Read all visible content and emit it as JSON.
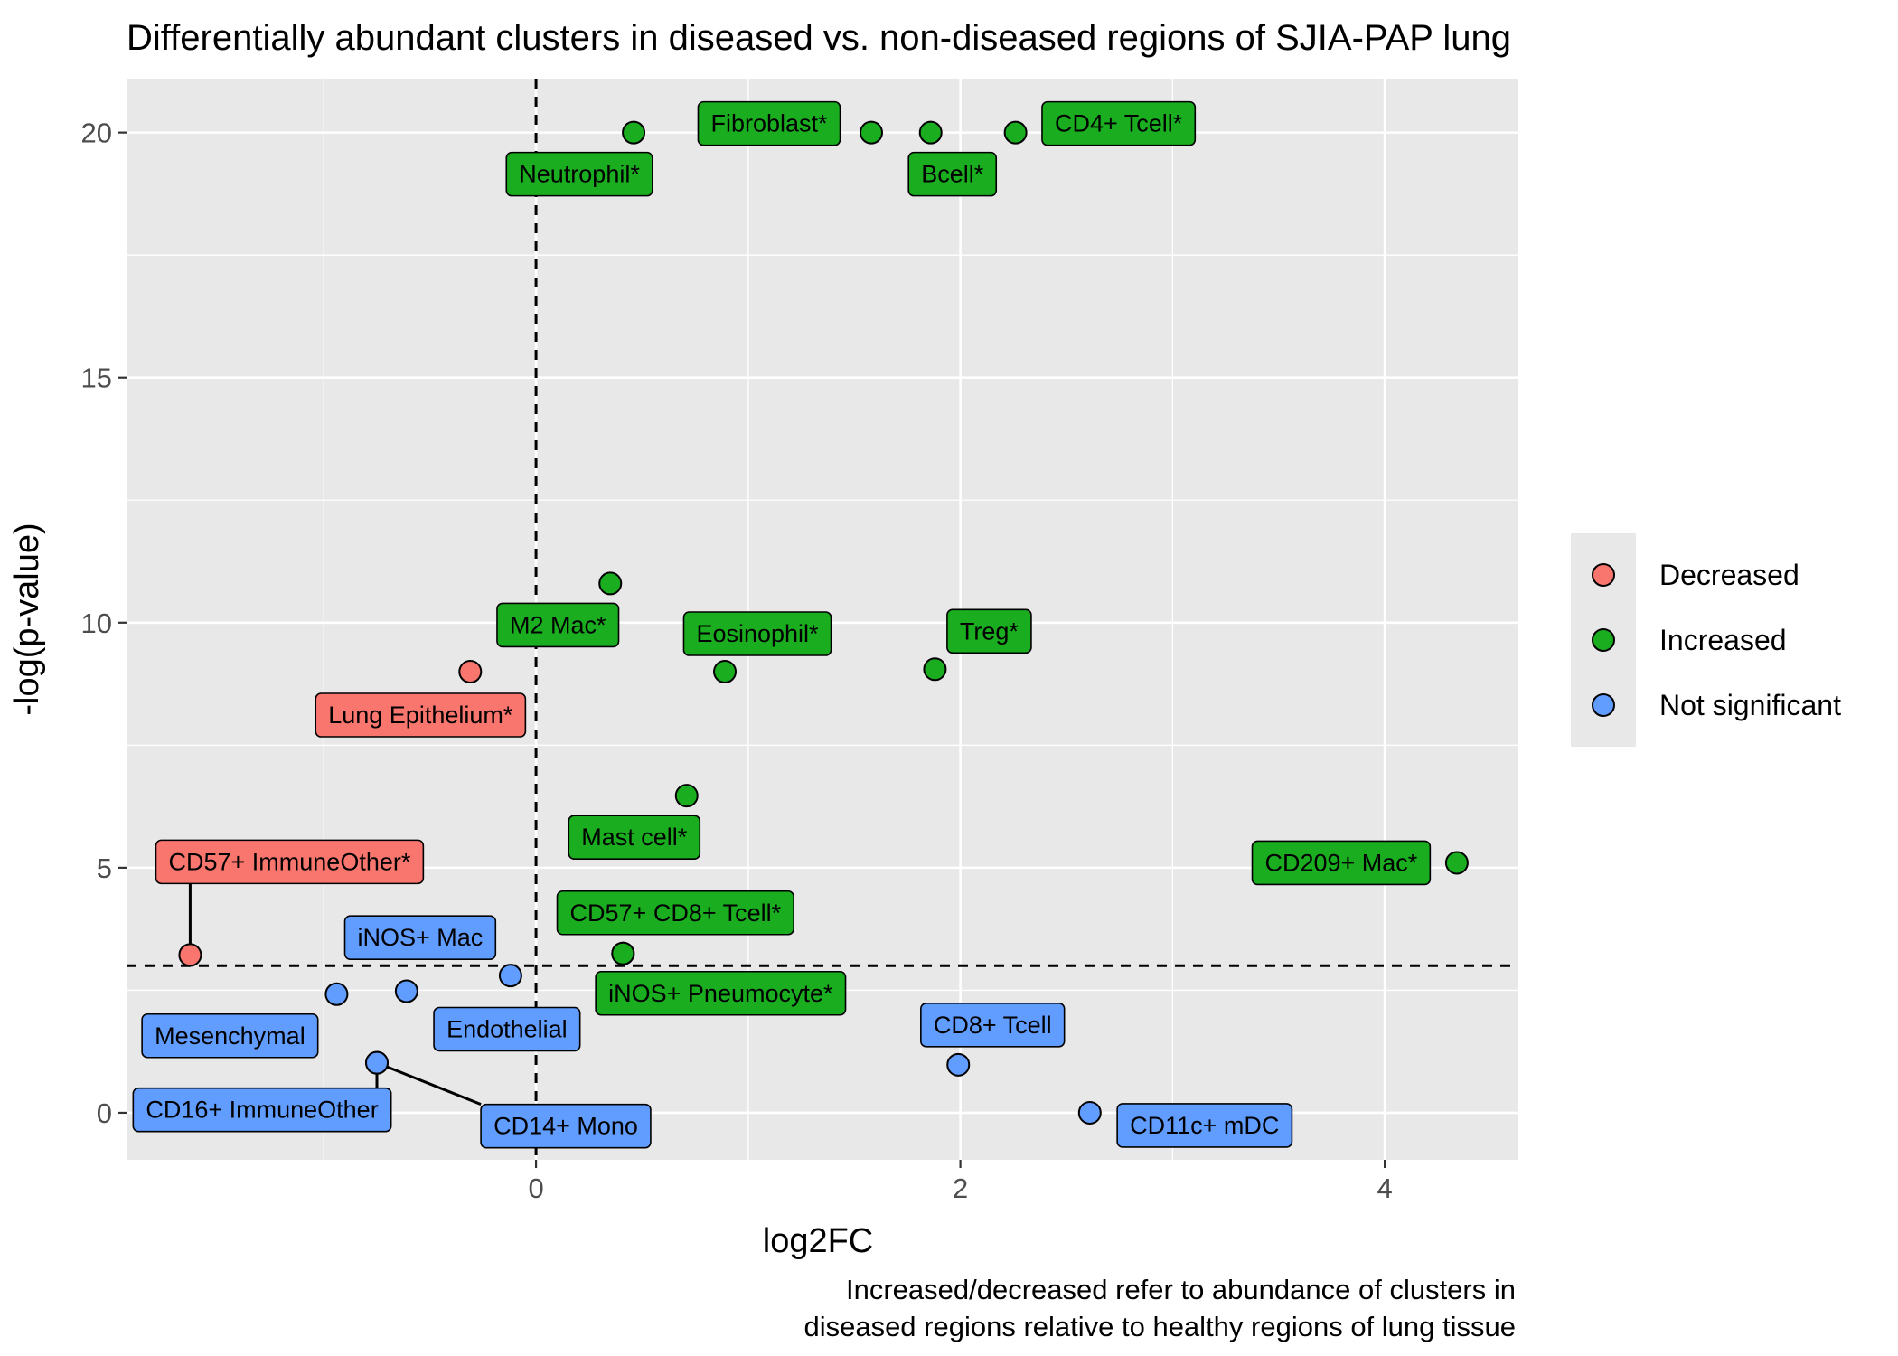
{
  "chart_data": {
    "type": "scatter",
    "title": "Differentially abundant clusters in diseased vs. non-diseased regions of SJIA-PAP lung",
    "xlabel": "log2FC",
    "ylabel": "-log(p-value)",
    "caption": [
      "Increased/decreased refer to abundance of clusters in",
      "diseased regions relative to healthy regions of lung tissue"
    ],
    "xlim": [
      -1.93,
      4.63
    ],
    "ylim": [
      -0.96,
      21.1
    ],
    "x_ticks": [
      0,
      2,
      4
    ],
    "y_ticks": [
      0,
      5,
      10,
      15,
      20
    ],
    "thresholds": {
      "x": 0,
      "y": 3
    },
    "grid": true,
    "legend": {
      "position": "right",
      "entries": [
        {
          "name": "Decreased",
          "color": "#f8766d"
        },
        {
          "name": "Increased",
          "color": "#1aad1f"
        },
        {
          "name": "Not significant",
          "color": "#619cff"
        }
      ]
    },
    "series": [
      {
        "name": "Decreased",
        "color": "#f8766d",
        "points": [
          {
            "label": "Lung Epithelium*",
            "x": -0.31,
            "y": 9.0
          },
          {
            "label": "CD57+ ImmuneOther*",
            "x": -1.63,
            "y": 3.22
          }
        ]
      },
      {
        "name": "Increased",
        "color": "#1aad1f",
        "points": [
          {
            "label": "Neutrophil*",
            "x": 0.46,
            "y": 20.0
          },
          {
            "label": "Fibroblast*",
            "x": 1.58,
            "y": 20.0
          },
          {
            "label": "Bcell*",
            "x": 1.86,
            "y": 20.0
          },
          {
            "label": "CD4+ Tcell*",
            "x": 2.26,
            "y": 20.0
          },
          {
            "label": "M2 Mac*",
            "x": 0.35,
            "y": 10.8
          },
          {
            "label": "Eosinophil*",
            "x": 0.89,
            "y": 9.0
          },
          {
            "label": "Treg*",
            "x": 1.88,
            "y": 9.05
          },
          {
            "label": "Mast cell*",
            "x": 0.71,
            "y": 6.47
          },
          {
            "label": "CD209+ Mac*",
            "x": 4.34,
            "y": 5.1
          },
          {
            "label": "CD57+ CD8+ Tcell*",
            "x": 0.41,
            "y": 3.25
          },
          {
            "label": "iNOS+ Pneumocyte*",
            "x": 0.41,
            "y": 3.25
          }
        ]
      },
      {
        "name": "Not significant",
        "color": "#619cff",
        "points": [
          {
            "label": "iNOS+ Mac",
            "x": -0.12,
            "y": 2.8
          },
          {
            "label": "Mesenchymal",
            "x": -0.94,
            "y": 2.42
          },
          {
            "label": "Endothelial",
            "x": -0.61,
            "y": 2.48
          },
          {
            "label": "CD16+ ImmuneOther",
            "x": -0.75,
            "y": 1.02
          },
          {
            "label": "CD14+ Mono",
            "x": -0.75,
            "y": 1.02
          },
          {
            "label": "CD8+ Tcell",
            "x": 1.99,
            "y": 0.98
          },
          {
            "label": "CD11c+ mDC",
            "x": 2.61,
            "y": 0.0
          }
        ]
      }
    ]
  }
}
